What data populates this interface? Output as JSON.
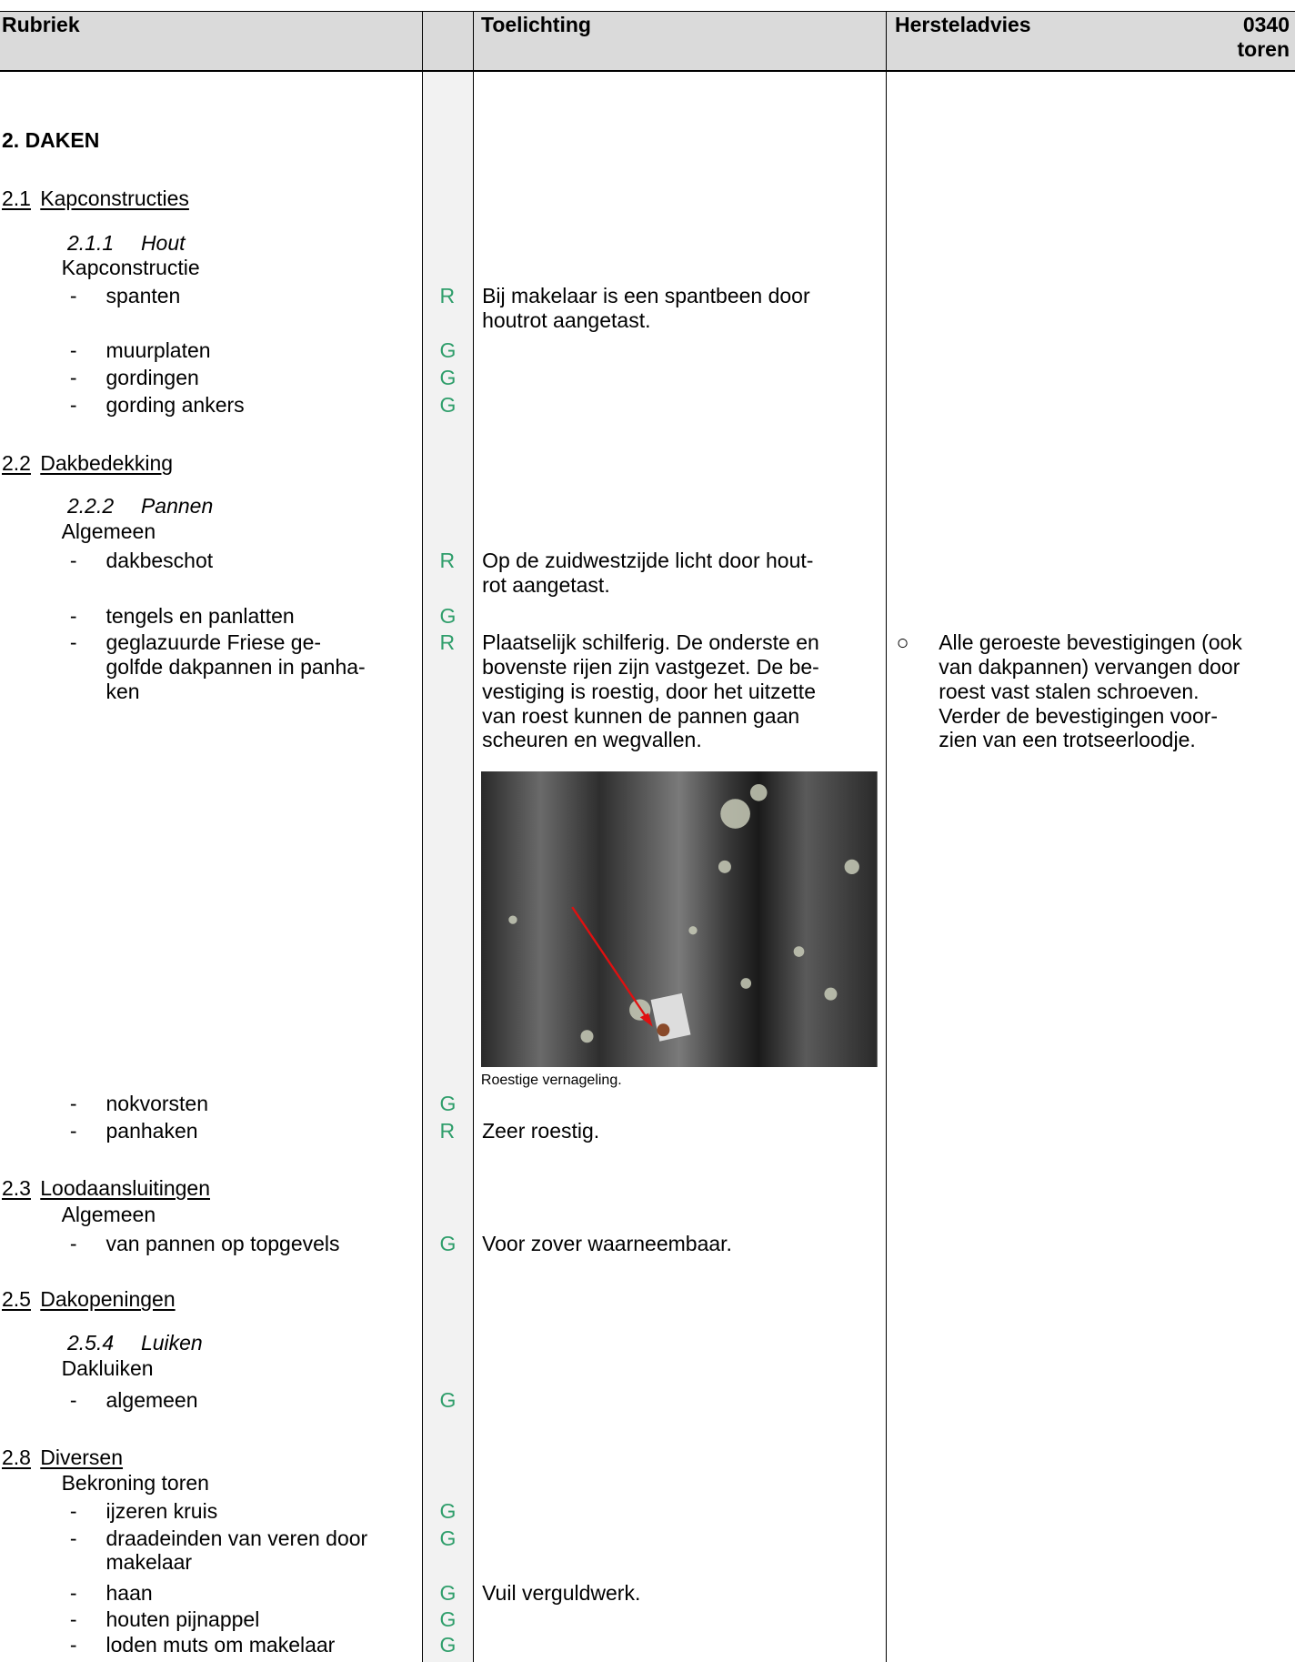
{
  "header": {
    "rubriek": "Rubriek",
    "toelichting": "Toelichting",
    "hersteladvies": "Hersteladvies",
    "code": "0340",
    "object": "toren"
  },
  "rows": [
    {
      "kind": "chapter",
      "text": "2. DAKEN"
    },
    {
      "kind": "section",
      "number": "2.1",
      "title": "Kapconstructies"
    },
    {
      "kind": "subsection",
      "number": "2.1.1",
      "title": "Hout"
    },
    {
      "kind": "group",
      "text": "Kapconstructie"
    },
    {
      "kind": "item",
      "lines": [
        "spanten"
      ],
      "rating": "R",
      "remark": [
        "Bij makelaar is een spantbeen door",
        "houtrot aangetast."
      ]
    },
    {
      "kind": "item",
      "lines": [
        "muurplaten"
      ],
      "rating": "G"
    },
    {
      "kind": "item",
      "lines": [
        "gordingen"
      ],
      "rating": "G"
    },
    {
      "kind": "item",
      "lines": [
        "gording ankers"
      ],
      "rating": "G"
    },
    {
      "kind": "section",
      "number": "2.2",
      "title": "Dakbedekking"
    },
    {
      "kind": "subsection",
      "number": "2.2.2",
      "title": "Pannen"
    },
    {
      "kind": "group",
      "text": "Algemeen"
    },
    {
      "kind": "item",
      "lines": [
        "dakbeschot"
      ],
      "rating": "R",
      "remark": [
        "Op de zuidwestzijde licht door hout-",
        "rot aangetast."
      ]
    },
    {
      "kind": "item",
      "lines": [
        "tengels en panlatten"
      ],
      "rating": "G"
    },
    {
      "kind": "item",
      "lines": [
        "geglazuurde Friese ge-",
        "golfde dakpannen in panha-",
        "ken"
      ],
      "rating": "R",
      "remark": [
        "Plaatselijk schilferig. De onderste en",
        "bovenste rijen zijn vastgezet. De be-",
        "vestiging is roestig, door het uitzette",
        "van roest kunnen de pannen gaan",
        "scheuren en wegvallen."
      ],
      "photo": {
        "caption": "Roestige vernageling."
      },
      "advice": [
        "Alle geroeste bevestigingen (ook",
        "van dakpannen) vervangen door",
        "roest vast stalen schroeven.",
        "Verder de bevestigingen voor-",
        "zien van een trotseerloodje."
      ]
    },
    {
      "kind": "item",
      "lines": [
        "nokvorsten"
      ],
      "rating": "G"
    },
    {
      "kind": "item",
      "lines": [
        "panhaken"
      ],
      "rating": "R",
      "remark": [
        "Zeer roestig."
      ]
    },
    {
      "kind": "section",
      "number": "2.3",
      "title": "Loodaansluitingen"
    },
    {
      "kind": "group",
      "text": "Algemeen"
    },
    {
      "kind": "item",
      "lines": [
        "van pannen op topgevels"
      ],
      "rating": "G",
      "remark": [
        "Voor zover waarneembaar."
      ]
    },
    {
      "kind": "section",
      "number": "2.5",
      "title": "Dakopeningen"
    },
    {
      "kind": "subsection",
      "number": "2.5.4",
      "title": "Luiken"
    },
    {
      "kind": "group",
      "text": "Dakluiken"
    },
    {
      "kind": "item",
      "lines": [
        "algemeen"
      ],
      "rating": "G"
    },
    {
      "kind": "section",
      "number": "2.8",
      "title": "Diversen"
    },
    {
      "kind": "group",
      "text": "Bekroning toren"
    },
    {
      "kind": "item",
      "lines": [
        "ijzeren kruis"
      ],
      "rating": "G"
    },
    {
      "kind": "item",
      "lines": [
        "draadeinden van veren door",
        "makelaar"
      ],
      "rating": "G"
    },
    {
      "kind": "item",
      "lines": [
        "haan"
      ],
      "rating": "G",
      "remark": [
        "Vuil verguldwerk."
      ]
    },
    {
      "kind": "item",
      "lines": [
        "houten pijnappel"
      ],
      "rating": "G"
    },
    {
      "kind": "item",
      "lines": [
        "loden muts om makelaar"
      ],
      "rating": "G"
    }
  ]
}
